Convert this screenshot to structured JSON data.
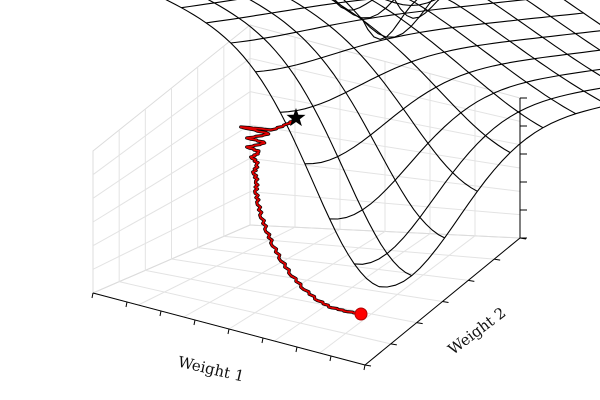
{
  "chart_data": {
    "type": "surface3d",
    "xlabel": "Weight 1",
    "ylabel": "Weight 2",
    "zlabel": "",
    "tick_labels_shown": false,
    "grid": true,
    "surface": {
      "grid_size": 10,
      "style": "wireframe",
      "line_color": "#000000"
    },
    "optimizer_path": {
      "color": "#e00000",
      "start_marker": "circle",
      "end_marker": "star",
      "start_color": "#ff0000",
      "end_color": "#000000"
    }
  }
}
